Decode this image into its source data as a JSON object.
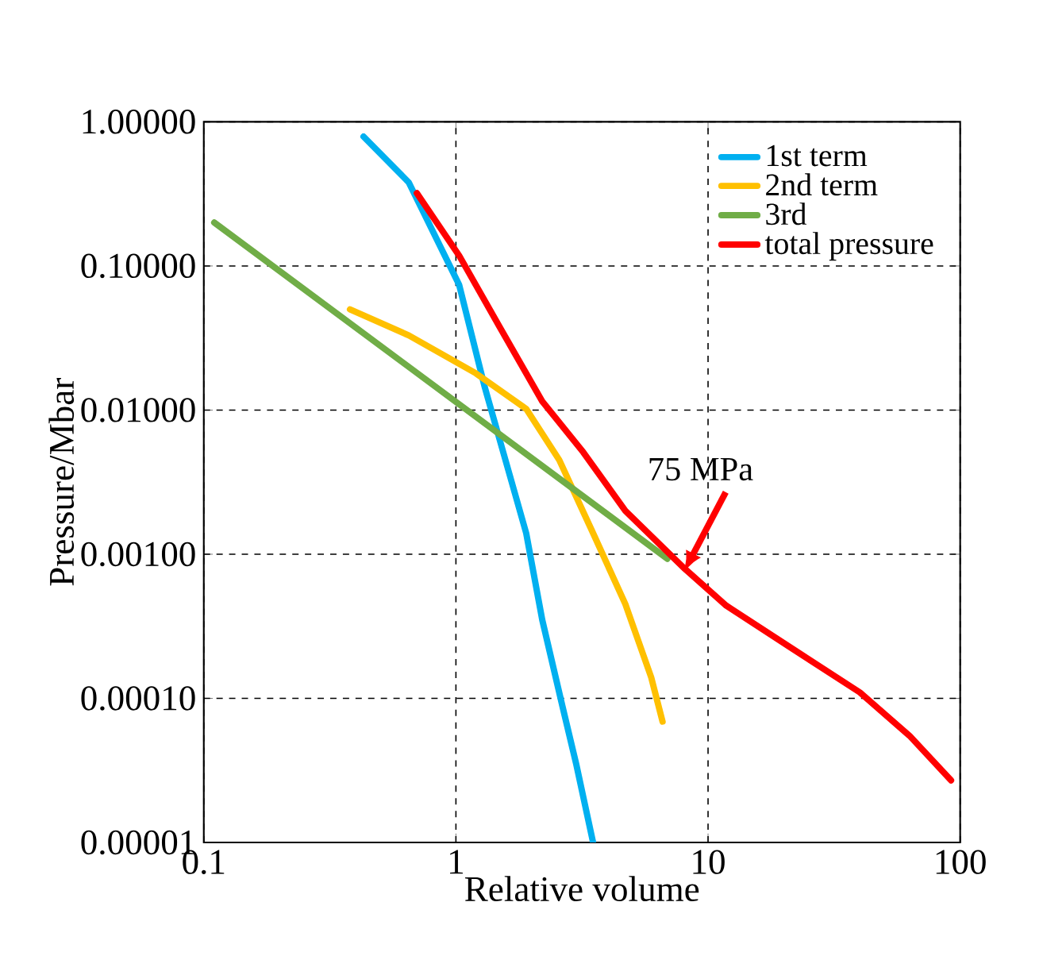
{
  "chart_data": {
    "type": "line",
    "xlabel": "Relative volume",
    "ylabel": "Pressure/Mbar",
    "log": "xy",
    "grid": true,
    "legend": "top right",
    "line_style": "solid",
    "marker": "none",
    "xlim": [
      0.1,
      100
    ],
    "ylim": [
      1e-05,
      1
    ],
    "xticks": [
      0.1,
      1,
      10,
      100
    ],
    "yticks": [
      {
        "value": 1e-05,
        "label": "0.00001"
      },
      {
        "value": 0.0001,
        "label": "0.00010"
      },
      {
        "value": 0.001,
        "label": "0.00100"
      },
      {
        "value": 0.01,
        "label": "0.01000"
      },
      {
        "value": 0.1,
        "label": "0.10000"
      },
      {
        "value": 1,
        "label": "1.00000"
      }
    ],
    "series": [
      {
        "name": "1st term",
        "color": "#00b0f0",
        "x": [
          0.43,
          0.65,
          1.03,
          1.3,
          1.63,
          1.9,
          2.2,
          2.65,
          3.0,
          3.5
        ],
        "values": [
          0.79,
          0.38,
          0.074,
          0.0145,
          0.0036,
          0.0014,
          0.00035,
          8.7e-05,
          3.5e-05,
          1e-05
        ]
      },
      {
        "name": "2nd term",
        "color": "#ffc000",
        "x": [
          0.38,
          0.65,
          1.2,
          1.9,
          2.57,
          3.5,
          4.7,
          5.95,
          6.6
        ],
        "values": [
          0.05,
          0.033,
          0.018,
          0.0102,
          0.0045,
          0.0014,
          0.00045,
          0.00014,
          6.9e-05
        ]
      },
      {
        "name": "3rd",
        "color": "#70ad47",
        "x": [
          0.11,
          6.9
        ],
        "values": [
          0.2,
          0.00093
        ]
      },
      {
        "name": "total pressure",
        "color": "#ff0000",
        "x": [
          0.7,
          1.03,
          1.5,
          2.2,
          3.2,
          4.7,
          8.1,
          11.8,
          21.7,
          40,
          63,
          92
        ],
        "values": [
          0.32,
          0.118,
          0.037,
          0.0115,
          0.0051,
          0.002,
          0.00079,
          0.00044,
          0.00022,
          0.00011,
          5.5e-05,
          2.7e-05
        ]
      }
    ],
    "annotations": [
      {
        "text": "75 MPa",
        "x": 8,
        "y": 0.00075
      }
    ]
  }
}
